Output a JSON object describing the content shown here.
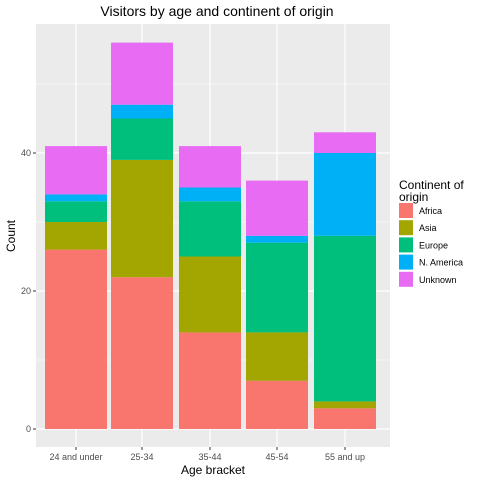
{
  "chart_data": {
    "type": "bar",
    "stacked": true,
    "title": "Visitors by age and continent of origin",
    "xlabel": "Age bracket",
    "ylabel": "Count",
    "ylim": [
      0,
      58.8
    ],
    "yticks": [
      0,
      20,
      40
    ],
    "grid": true,
    "categories": [
      "24 and under",
      "25-34",
      "35-44",
      "45-54",
      "55 and up"
    ],
    "series": [
      {
        "name": "Africa",
        "color": "#F8766D",
        "values": [
          26,
          22,
          14,
          7,
          3
        ]
      },
      {
        "name": "Asia",
        "color": "#A3A500",
        "values": [
          4,
          17,
          11,
          7,
          1
        ]
      },
      {
        "name": "Europe",
        "color": "#00BF7D",
        "values": [
          3,
          6,
          8,
          13,
          24
        ]
      },
      {
        "name": "N. America",
        "color": "#00B0F6",
        "values": [
          1,
          2,
          2,
          1,
          12
        ]
      },
      {
        "name": "Unknown",
        "color": "#E76BF3",
        "values": [
          7,
          9,
          6,
          8,
          3
        ]
      }
    ],
    "legend": {
      "title_lines": [
        "Continent of",
        "origin"
      ],
      "position": "right"
    }
  }
}
